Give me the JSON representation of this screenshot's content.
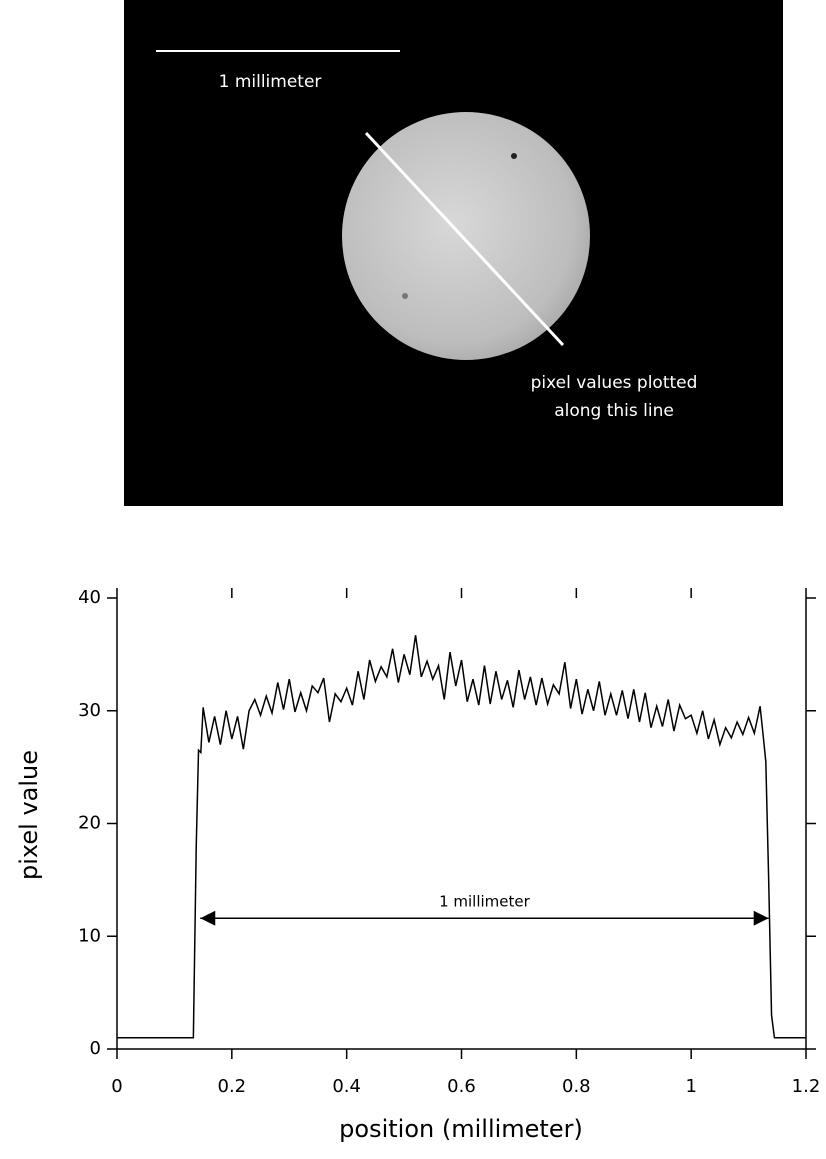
{
  "image": {
    "scale_label": "1 millimeter",
    "line_label": [
      "pixel values plotted",
      "along this line"
    ]
  },
  "chart_data": {
    "type": "line",
    "x_label": "position (millimeter)",
    "y_label": "pixel value",
    "xlim": [
      0,
      1.2
    ],
    "ylim": [
      0,
      40
    ],
    "xticks": [
      0,
      0.2,
      0.4,
      0.6,
      0.8,
      1,
      1.2
    ],
    "yticks": [
      0,
      10,
      20,
      30,
      40
    ],
    "color": "#000000",
    "annotation": {
      "text": "1 millimeter",
      "x": [
        0.145,
        1.135
      ],
      "y": 11.6
    },
    "x": [
      0,
      0.133,
      0.138,
      0.142,
      0.146,
      0.15,
      0.16,
      0.17,
      0.18,
      0.19,
      0.2,
      0.21,
      0.22,
      0.23,
      0.24,
      0.25,
      0.26,
      0.27,
      0.28,
      0.29,
      0.3,
      0.31,
      0.32,
      0.33,
      0.34,
      0.35,
      0.36,
      0.37,
      0.38,
      0.39,
      0.4,
      0.41,
      0.42,
      0.43,
      0.44,
      0.45,
      0.46,
      0.47,
      0.48,
      0.49,
      0.5,
      0.51,
      0.52,
      0.53,
      0.54,
      0.55,
      0.56,
      0.57,
      0.58,
      0.59,
      0.6,
      0.61,
      0.62,
      0.63,
      0.64,
      0.65,
      0.66,
      0.67,
      0.68,
      0.69,
      0.7,
      0.71,
      0.72,
      0.73,
      0.74,
      0.75,
      0.76,
      0.77,
      0.78,
      0.79,
      0.8,
      0.81,
      0.82,
      0.83,
      0.84,
      0.85,
      0.86,
      0.87,
      0.88,
      0.89,
      0.9,
      0.91,
      0.92,
      0.93,
      0.94,
      0.95,
      0.96,
      0.97,
      0.98,
      0.99,
      1,
      1.01,
      1.02,
      1.03,
      1.04,
      1.05,
      1.06,
      1.07,
      1.08,
      1.09,
      1.1,
      1.11,
      1.12,
      1.125,
      1.13,
      1.135,
      1.14,
      1.145,
      1.2
    ],
    "values": [
      1,
      1,
      18,
      26.5,
      26.3,
      30.3,
      27.2,
      29.5,
      27.0,
      30.0,
      27.5,
      29.5,
      26.6,
      30.0,
      31.0,
      29.6,
      31.3,
      29.8,
      32.5,
      30.1,
      32.8,
      29.9,
      31.6,
      30.0,
      32.2,
      31.6,
      32.9,
      29.0,
      31.5,
      30.8,
      32.0,
      30.5,
      33.5,
      31.0,
      34.5,
      32.6,
      33.9,
      33.0,
      35.5,
      32.5,
      35.0,
      33.2,
      36.7,
      33.0,
      34.4,
      32.8,
      34.0,
      31.0,
      35.2,
      32.2,
      34.5,
      30.8,
      32.8,
      30.5,
      34.0,
      30.6,
      33.5,
      31.0,
      32.7,
      30.3,
      33.6,
      31.0,
      33.0,
      30.5,
      32.9,
      30.6,
      32.3,
      31.5,
      34.3,
      30.2,
      32.8,
      29.7,
      31.9,
      30.0,
      32.6,
      29.6,
      31.5,
      29.6,
      31.8,
      29.3,
      31.9,
      29.0,
      31.6,
      28.5,
      30.4,
      28.6,
      31.0,
      28.2,
      30.5,
      29.3,
      29.6,
      28.0,
      30.0,
      27.5,
      29.2,
      27.0,
      28.5,
      27.6,
      29.0,
      27.9,
      29.4,
      28.0,
      30.4,
      28.0,
      25.5,
      15.0,
      3.0,
      1,
      1
    ]
  }
}
